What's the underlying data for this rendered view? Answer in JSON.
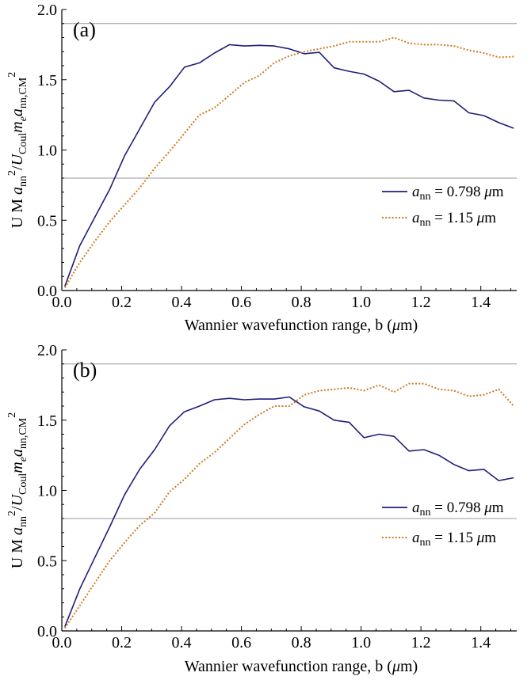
{
  "chart_data": [
    {
      "type": "line",
      "panel_label": "(a)",
      "xlabel_prefix": "Wannier wavefunction range, b (",
      "xlabel_mu": "μ",
      "xlabel_suffix": "m)",
      "ylabel": "U M a_nn^2 / U_Coul m_e a_nn,CM^2",
      "xlim": [
        0,
        1.52
      ],
      "ylim": [
        0,
        2.0
      ],
      "xticks": [
        0.0,
        0.2,
        0.4,
        0.6,
        0.8,
        1.0,
        1.2,
        1.4
      ],
      "yticks": [
        0.0,
        0.5,
        1.0,
        1.5,
        2.0
      ],
      "hlines": [
        0.8,
        1.9
      ],
      "legend_position": "right",
      "series": [
        {
          "name": "a_nn = 0.798 μm",
          "name_var": "a",
          "name_sub": "nn",
          "name_value": " = 0.798 ",
          "name_unit_mu": "μ",
          "name_unit_suffix": "m",
          "color": "#1f1f7a",
          "style": "solid",
          "x": [
            0.01,
            0.06,
            0.11,
            0.16,
            0.21,
            0.26,
            0.31,
            0.36,
            0.41,
            0.46,
            0.51,
            0.56,
            0.61,
            0.66,
            0.71,
            0.76,
            0.81,
            0.86,
            0.91,
            0.96,
            1.01,
            1.06,
            1.11,
            1.16,
            1.21,
            1.26,
            1.31,
            1.36,
            1.41,
            1.46,
            1.51
          ],
          "y": [
            0.03,
            0.32,
            0.52,
            0.72,
            0.96,
            1.15,
            1.34,
            1.45,
            1.59,
            1.62,
            1.69,
            1.75,
            1.74,
            1.745,
            1.74,
            1.72,
            1.685,
            1.695,
            1.585,
            1.56,
            1.54,
            1.49,
            1.415,
            1.425,
            1.37,
            1.355,
            1.35,
            1.265,
            1.245,
            1.195,
            1.155
          ]
        },
        {
          "name": "a_nn = 1.15 μm",
          "name_var": "a",
          "name_sub": "nn",
          "name_value": " = 1.15 ",
          "name_unit_mu": "μ",
          "name_unit_suffix": "m",
          "color": "#d07a25",
          "style": "dotted",
          "x": [
            0.01,
            0.06,
            0.11,
            0.16,
            0.21,
            0.26,
            0.31,
            0.36,
            0.41,
            0.46,
            0.51,
            0.56,
            0.61,
            0.66,
            0.71,
            0.76,
            0.81,
            0.86,
            0.91,
            0.96,
            1.01,
            1.06,
            1.11,
            1.16,
            1.21,
            1.26,
            1.31,
            1.36,
            1.41,
            1.46,
            1.51
          ],
          "y": [
            0.02,
            0.2,
            0.35,
            0.49,
            0.61,
            0.73,
            0.87,
            0.99,
            1.12,
            1.25,
            1.3,
            1.39,
            1.48,
            1.53,
            1.62,
            1.67,
            1.7,
            1.72,
            1.74,
            1.77,
            1.77,
            1.77,
            1.8,
            1.76,
            1.75,
            1.75,
            1.74,
            1.71,
            1.69,
            1.66,
            1.665
          ]
        }
      ]
    },
    {
      "type": "line",
      "panel_label": "(b)",
      "xlabel_prefix": "Wannier wavefunction range, b (",
      "xlabel_mu": "μ",
      "xlabel_suffix": "m)",
      "ylabel": "U M a_nn^2 / U_Coul m_e a_nn,CM^2",
      "xlim": [
        0,
        1.52
      ],
      "ylim": [
        0,
        2.0
      ],
      "xticks": [
        0.0,
        0.2,
        0.4,
        0.6,
        0.8,
        1.0,
        1.2,
        1.4
      ],
      "yticks": [
        0.0,
        0.5,
        1.0,
        1.5,
        2.0
      ],
      "hlines": [
        0.8,
        1.9
      ],
      "legend_position": "right",
      "series": [
        {
          "name": "a_nn = 0.798 μm",
          "name_var": "a",
          "name_sub": "nn",
          "name_value": " = 0.798 ",
          "name_unit_mu": "μ",
          "name_unit_suffix": "m",
          "color": "#1f1f7a",
          "style": "solid",
          "x": [
            0.01,
            0.06,
            0.11,
            0.16,
            0.21,
            0.26,
            0.31,
            0.36,
            0.41,
            0.46,
            0.51,
            0.56,
            0.61,
            0.66,
            0.71,
            0.76,
            0.81,
            0.86,
            0.91,
            0.96,
            1.01,
            1.06,
            1.11,
            1.16,
            1.21,
            1.26,
            1.31,
            1.36,
            1.41,
            1.46,
            1.51
          ],
          "y": [
            0.03,
            0.3,
            0.52,
            0.74,
            0.97,
            1.15,
            1.29,
            1.46,
            1.56,
            1.6,
            1.645,
            1.655,
            1.645,
            1.65,
            1.65,
            1.665,
            1.595,
            1.565,
            1.5,
            1.485,
            1.375,
            1.4,
            1.385,
            1.28,
            1.29,
            1.25,
            1.185,
            1.14,
            1.15,
            1.07,
            1.09
          ]
        },
        {
          "name": "a_nn = 1.15 μm",
          "name_var": "a",
          "name_sub": "nn",
          "name_value": " = 1.15 ",
          "name_unit_mu": "μ",
          "name_unit_suffix": "m",
          "color": "#d07a25",
          "style": "dotted",
          "x": [
            0.01,
            0.06,
            0.11,
            0.16,
            0.21,
            0.26,
            0.31,
            0.36,
            0.41,
            0.46,
            0.51,
            0.56,
            0.61,
            0.66,
            0.71,
            0.76,
            0.81,
            0.86,
            0.91,
            0.96,
            1.01,
            1.06,
            1.11,
            1.16,
            1.21,
            1.26,
            1.31,
            1.36,
            1.41,
            1.46,
            1.51
          ],
          "y": [
            0.02,
            0.18,
            0.34,
            0.5,
            0.63,
            0.75,
            0.84,
            0.99,
            1.08,
            1.19,
            1.27,
            1.37,
            1.47,
            1.54,
            1.6,
            1.6,
            1.68,
            1.71,
            1.72,
            1.73,
            1.71,
            1.75,
            1.7,
            1.76,
            1.76,
            1.72,
            1.71,
            1.67,
            1.68,
            1.72,
            1.6
          ]
        }
      ]
    }
  ]
}
